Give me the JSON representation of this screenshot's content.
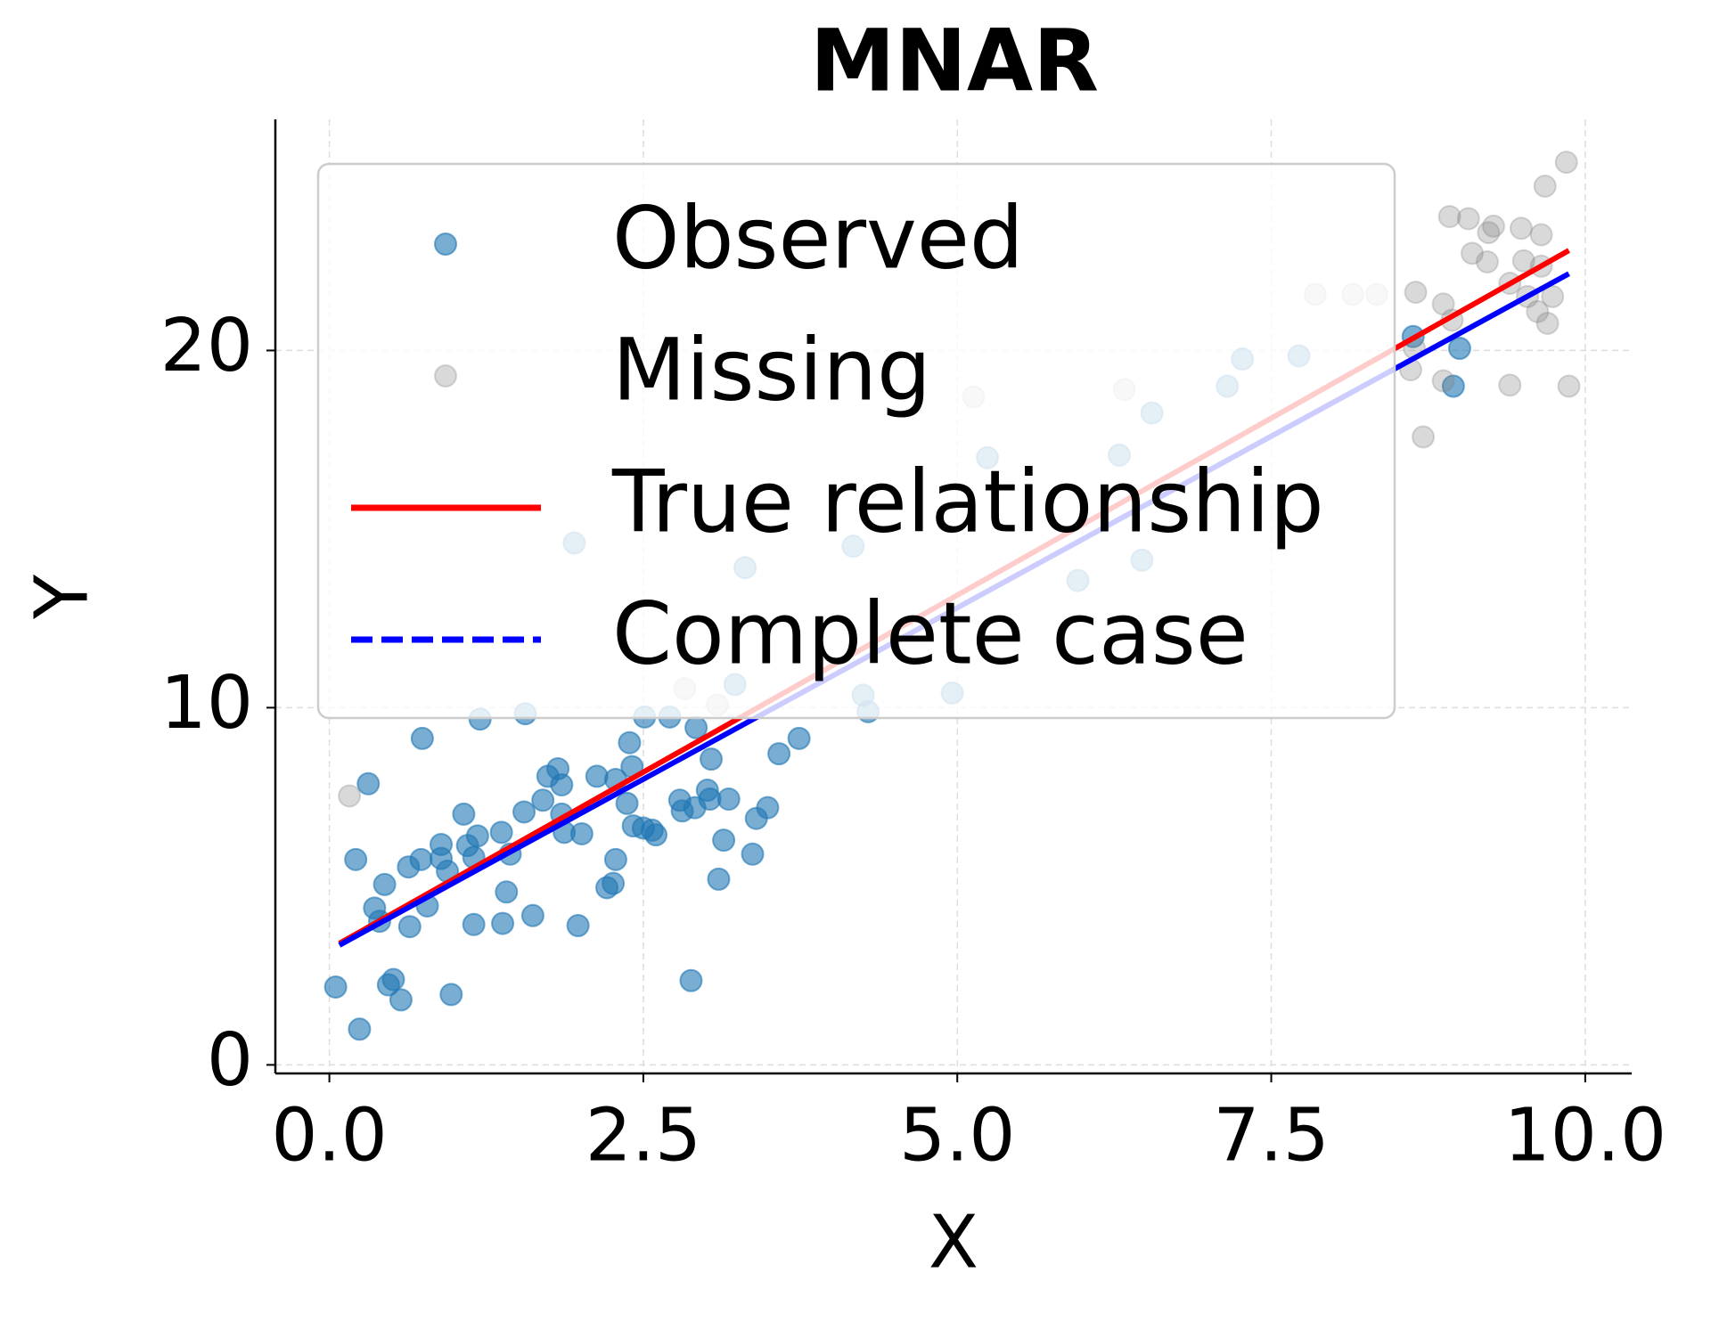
{
  "chart_data": {
    "type": "scatter",
    "title": "MNAR",
    "x_label": "X",
    "y_label": "Y",
    "xlim": [
      -0.43,
      10.37
    ],
    "ylim": [
      -0.24,
      26.47
    ],
    "xticks": [
      {
        "value": 0,
        "label": "0.0"
      },
      {
        "value": 2.5,
        "label": "2.5"
      },
      {
        "value": 5,
        "label": "5.0"
      },
      {
        "value": 7.5,
        "label": "7.5"
      },
      {
        "value": 10,
        "label": "10.0"
      }
    ],
    "yticks": [
      0,
      10,
      20
    ],
    "grid": true,
    "legend": "upper left",
    "series": [
      {
        "name": "Observed",
        "type": "scatter",
        "color": "#1f77b4",
        "x": [
          0.05,
          0.24,
          0.21,
          0.31,
          0.36,
          0.4,
          0.44,
          0.47,
          0.51,
          0.57,
          0.64,
          0.63,
          0.74,
          0.73,
          0.78,
          0.89,
          0.89,
          0.94,
          0.97,
          1.07,
          1.1,
          1.15,
          1.15,
          1.18,
          1.2,
          1.37,
          1.38,
          1.41,
          1.44,
          1.55,
          1.56,
          1.62,
          1.7,
          1.74,
          1.82,
          1.85,
          1.85,
          1.87,
          1.98,
          2.01,
          2.13,
          2.21,
          2.26,
          2.28,
          2.28,
          2.37,
          2.39,
          2.41,
          2.42,
          2.5,
          2.51,
          2.57,
          2.6,
          2.71,
          2.79,
          2.81,
          2.88,
          2.91,
          2.92,
          3.01,
          3.03,
          3.04,
          3.1,
          3.14,
          3.18,
          3.23,
          3.37,
          3.4,
          3.49,
          3.58,
          3.74,
          8.63,
          9.0,
          8.95,
          1.95,
          3.31,
          4.29,
          4.25,
          4.96,
          4.17,
          5.24,
          7.15,
          7.27,
          7.72,
          6.55,
          5.96,
          6.47,
          6.29
        ],
        "y": [
          2.18,
          1.0,
          5.75,
          7.87,
          4.39,
          4.02,
          5.05,
          2.24,
          2.39,
          1.82,
          3.87,
          5.54,
          9.14,
          5.75,
          4.45,
          6.17,
          5.78,
          5.42,
          1.97,
          7.02,
          6.14,
          5.81,
          3.93,
          6.41,
          9.68,
          6.51,
          3.96,
          4.84,
          5.9,
          7.08,
          9.83,
          4.18,
          7.41,
          8.08,
          8.29,
          7.84,
          7.02,
          6.51,
          3.9,
          6.47,
          8.08,
          4.96,
          5.08,
          5.75,
          7.99,
          7.32,
          9.02,
          8.35,
          6.69,
          6.63,
          9.74,
          6.57,
          6.44,
          9.74,
          7.41,
          7.11,
          2.36,
          7.2,
          9.44,
          7.69,
          7.44,
          8.56,
          5.2,
          6.29,
          7.44,
          10.65,
          5.9,
          6.9,
          7.2,
          8.71,
          9.14,
          20.39,
          20.06,
          19.0,
          14.61,
          13.92,
          9.89,
          10.35,
          10.41,
          14.52,
          17.0,
          19.0,
          19.76,
          19.85,
          18.25,
          13.56,
          14.13,
          17.07
        ]
      },
      {
        "name": "Missing",
        "type": "scatter",
        "color": "gray",
        "x": [
          0.16,
          8.65,
          8.71,
          8.61,
          8.64,
          8.87,
          8.87,
          8.92,
          9.07,
          9.1,
          9.22,
          9.23,
          9.27,
          9.4,
          9.4,
          9.49,
          9.51,
          9.54,
          9.65,
          9.65,
          9.68,
          9.62,
          9.7,
          9.74,
          9.87,
          9.85,
          8.94,
          7.85,
          8.15,
          8.34,
          6.33,
          5.13,
          3.09,
          2.83
        ],
        "y": [
          7.53,
          21.63,
          17.58,
          19.46,
          20.06,
          21.3,
          19.15,
          23.75,
          23.69,
          22.72,
          22.48,
          23.3,
          23.48,
          21.88,
          19.03,
          23.42,
          22.51,
          21.51,
          23.24,
          22.36,
          24.6,
          21.09,
          20.76,
          21.51,
          19.0,
          25.27,
          20.85,
          21.57,
          21.57,
          21.57,
          18.91,
          18.7,
          10.08,
          10.53
        ]
      },
      {
        "name": "True relationship",
        "type": "line",
        "color": "#ff0000",
        "x": [
          0.08,
          9.87
        ],
        "y": [
          3.4,
          22.8
        ]
      },
      {
        "name": "Complete case",
        "type": "line",
        "color": "#0000ff",
        "x": [
          0.08,
          9.87
        ],
        "y": [
          3.35,
          22.15
        ]
      }
    ]
  }
}
